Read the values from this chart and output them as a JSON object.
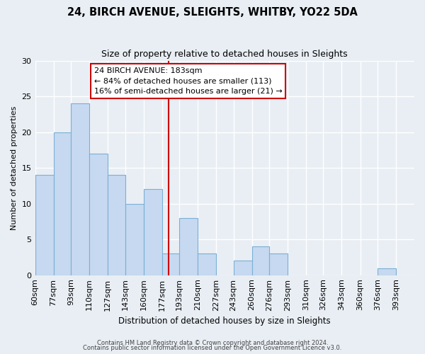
{
  "title": "24, BIRCH AVENUE, SLEIGHTS, WHITBY, YO22 5DA",
  "subtitle": "Size of property relative to detached houses in Sleights",
  "xlabel": "Distribution of detached houses by size in Sleights",
  "ylabel": "Number of detached properties",
  "bins": [
    "60sqm",
    "77sqm",
    "93sqm",
    "110sqm",
    "127sqm",
    "143sqm",
    "160sqm",
    "177sqm",
    "193sqm",
    "210sqm",
    "227sqm",
    "243sqm",
    "260sqm",
    "276sqm",
    "293sqm",
    "310sqm",
    "326sqm",
    "343sqm",
    "360sqm",
    "376sqm",
    "393sqm"
  ],
  "bin_edges": [
    60,
    77,
    93,
    110,
    127,
    143,
    160,
    177,
    193,
    210,
    227,
    243,
    260,
    276,
    293,
    310,
    326,
    343,
    360,
    376,
    393
  ],
  "counts": [
    14,
    20,
    24,
    17,
    14,
    10,
    12,
    3,
    8,
    3,
    0,
    2,
    4,
    3,
    0,
    0,
    0,
    0,
    0,
    1,
    0
  ],
  "bar_color": "#c6d9f0",
  "bar_edge_color": "#7bafd4",
  "vline_x": 183,
  "vline_color": "#cc0000",
  "annotation_title": "24 BIRCH AVENUE: 183sqm",
  "annotation_line1": "← 84% of detached houses are smaller (113)",
  "annotation_line2": "16% of semi-detached houses are larger (21) →",
  "annotation_box_edge": "#cc0000",
  "ylim": [
    0,
    30
  ],
  "yticks": [
    0,
    5,
    10,
    15,
    20,
    25,
    30
  ],
  "footer1": "Contains HM Land Registry data © Crown copyright and database right 2024.",
  "footer2": "Contains public sector information licensed under the Open Government Licence v3.0.",
  "bg_color": "#e8eef4"
}
